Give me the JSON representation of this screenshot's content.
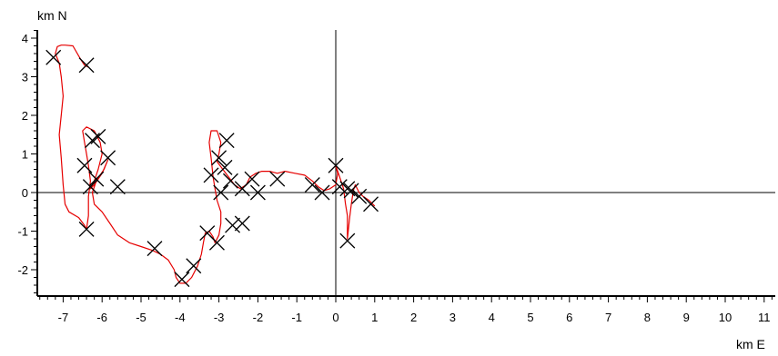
{
  "chart_data": {
    "type": "line",
    "xlabel": "km E",
    "ylabel": "km N",
    "xlim": [
      -7.7,
      11.3
    ],
    "ylim": [
      -2.8,
      4.3
    ],
    "x_ticks": [
      -7,
      -6,
      -5,
      -4,
      -3,
      -2,
      -1,
      0,
      1,
      2,
      3,
      4,
      5,
      6,
      7,
      8,
      9,
      10,
      11
    ],
    "y_ticks": [
      -2,
      -1,
      0,
      1,
      2,
      3,
      4
    ],
    "x_tick_labels": [
      "-7",
      "-6",
      "-5",
      "-4",
      "-3",
      "-2",
      "-1",
      "0",
      "1",
      "2",
      "3",
      "4",
      "5",
      "6",
      "7",
      "8",
      "9",
      "10",
      "11"
    ],
    "y_tick_labels": [
      "-2",
      "-1",
      "0",
      "1",
      "2",
      "3",
      "4"
    ],
    "grid": false,
    "colors": {
      "track": "#e60000",
      "marker": "#000000",
      "axis": "#000000"
    },
    "series": [
      {
        "points": [
          [
            -6.35,
            3.25
          ],
          [
            -6.45,
            3.3
          ],
          [
            -6.55,
            3.45
          ],
          [
            -6.75,
            3.8
          ],
          [
            -6.95,
            3.82
          ],
          [
            -7.05,
            3.82
          ],
          [
            -7.15,
            3.78
          ],
          [
            -7.2,
            3.6
          ],
          [
            -7.1,
            3.35
          ],
          [
            -7.05,
            3.0
          ],
          [
            -7.0,
            2.5
          ],
          [
            -7.05,
            2.0
          ],
          [
            -7.1,
            1.5
          ],
          [
            -7.05,
            0.9
          ],
          [
            -7.0,
            0.2
          ],
          [
            -6.95,
            -0.3
          ],
          [
            -6.85,
            -0.5
          ],
          [
            -6.6,
            -0.65
          ],
          [
            -6.45,
            -0.85
          ],
          [
            -6.4,
            -0.95
          ],
          [
            -6.35,
            -0.6
          ],
          [
            -6.35,
            -0.1
          ],
          [
            -6.3,
            0.3
          ],
          [
            -6.35,
            0.7
          ],
          [
            -6.4,
            1.0
          ],
          [
            -6.45,
            1.3
          ],
          [
            -6.5,
            1.6
          ],
          [
            -6.4,
            1.7
          ],
          [
            -6.2,
            1.6
          ],
          [
            -6.05,
            1.3
          ],
          [
            -6.0,
            1.0
          ],
          [
            -6.1,
            0.6
          ],
          [
            -6.2,
            0.3
          ],
          [
            -6.3,
            0.1
          ],
          [
            -6.2,
            0.2
          ],
          [
            -6.0,
            0.5
          ],
          [
            -5.85,
            0.85
          ],
          [
            -5.95,
            0.6
          ],
          [
            -6.15,
            0.3
          ],
          [
            -6.25,
            0.0
          ],
          [
            -6.2,
            -0.3
          ],
          [
            -6.0,
            -0.5
          ],
          [
            -5.8,
            -0.8
          ],
          [
            -5.6,
            -1.1
          ],
          [
            -5.3,
            -1.3
          ],
          [
            -5.0,
            -1.4
          ],
          [
            -4.7,
            -1.5
          ],
          [
            -4.5,
            -1.6
          ],
          [
            -4.3,
            -1.75
          ],
          [
            -4.15,
            -2.0
          ],
          [
            -4.1,
            -2.2
          ],
          [
            -4.0,
            -2.35
          ],
          [
            -3.85,
            -2.35
          ],
          [
            -3.7,
            -2.2
          ],
          [
            -3.55,
            -1.9
          ],
          [
            -3.45,
            -1.6
          ],
          [
            -3.4,
            -1.3
          ],
          [
            -3.35,
            -1.05
          ],
          [
            -3.25,
            -1.0
          ],
          [
            -3.15,
            -1.15
          ],
          [
            -3.1,
            -1.3
          ],
          [
            -3.0,
            -1.1
          ],
          [
            -2.95,
            -0.8
          ],
          [
            -2.95,
            -0.5
          ],
          [
            -3.05,
            -0.2
          ],
          [
            -3.1,
            0.1
          ],
          [
            -3.15,
            0.4
          ],
          [
            -3.2,
            0.9
          ],
          [
            -3.25,
            1.3
          ],
          [
            -3.2,
            1.6
          ],
          [
            -3.05,
            1.6
          ],
          [
            -2.95,
            1.3
          ],
          [
            -3.0,
            1.0
          ],
          [
            -3.05,
            0.8
          ],
          [
            -2.9,
            0.6
          ],
          [
            -2.75,
            0.4
          ],
          [
            -2.6,
            0.2
          ],
          [
            -2.45,
            0.1
          ],
          [
            -2.3,
            0.2
          ],
          [
            -2.2,
            0.4
          ],
          [
            -2.05,
            0.5
          ],
          [
            -1.9,
            0.55
          ],
          [
            -1.7,
            0.55
          ],
          [
            -1.5,
            0.5
          ],
          [
            -1.3,
            0.55
          ],
          [
            -1.05,
            0.5
          ],
          [
            -0.8,
            0.45
          ],
          [
            -0.6,
            0.3
          ],
          [
            -0.45,
            0.15
          ],
          [
            -0.3,
            0.05
          ],
          [
            -0.15,
            0.1
          ],
          [
            0.0,
            0.2
          ],
          [
            0.05,
            0.5
          ],
          [
            0.0,
            0.7
          ],
          [
            0.1,
            0.4
          ],
          [
            0.2,
            0.1
          ],
          [
            0.25,
            -0.3
          ],
          [
            0.3,
            -0.6
          ],
          [
            0.3,
            -0.95
          ],
          [
            0.3,
            -1.2
          ],
          [
            0.35,
            -0.7
          ],
          [
            0.4,
            -0.3
          ],
          [
            0.45,
            0.05
          ],
          [
            0.5,
            0.2
          ],
          [
            0.6,
            0.0
          ],
          [
            0.7,
            -0.1
          ],
          [
            0.85,
            -0.2
          ],
          [
            1.0,
            -0.35
          ]
        ]
      }
    ],
    "markers": [
      [
        -7.25,
        3.5
      ],
      [
        -6.4,
        3.3
      ],
      [
        -6.25,
        1.35
      ],
      [
        -6.1,
        1.45
      ],
      [
        -5.85,
        0.9
      ],
      [
        -6.45,
        0.7
      ],
      [
        -6.15,
        0.35
      ],
      [
        -6.3,
        0.15
      ],
      [
        -5.6,
        0.15
      ],
      [
        -6.4,
        -0.95
      ],
      [
        -4.65,
        -1.45
      ],
      [
        -3.95,
        -2.25
      ],
      [
        -3.65,
        -1.9
      ],
      [
        -3.3,
        -1.05
      ],
      [
        -3.05,
        -1.3
      ],
      [
        -2.65,
        -0.85
      ],
      [
        -2.4,
        -0.8
      ],
      [
        -3.2,
        0.45
      ],
      [
        -3.0,
        0.9
      ],
      [
        -2.85,
        0.65
      ],
      [
        -2.95,
        0.0
      ],
      [
        -2.7,
        0.3
      ],
      [
        -2.4,
        0.1
      ],
      [
        -2.15,
        0.35
      ],
      [
        -2.0,
        0.0
      ],
      [
        -2.8,
        1.35
      ],
      [
        -1.5,
        0.35
      ],
      [
        -0.6,
        0.2
      ],
      [
        -0.35,
        0.0
      ],
      [
        0.0,
        0.7
      ],
      [
        0.1,
        0.15
      ],
      [
        0.3,
        0.1
      ],
      [
        0.4,
        0.05
      ],
      [
        0.6,
        -0.1
      ],
      [
        0.9,
        -0.3
      ],
      [
        0.3,
        -1.25
      ]
    ]
  }
}
